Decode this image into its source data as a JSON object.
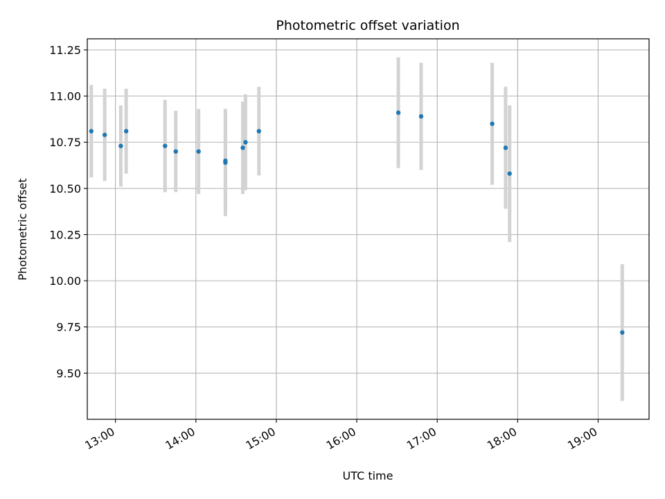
{
  "chart_data": {
    "type": "scatter",
    "title": "Photometric offset variation",
    "xlabel": "UTC time",
    "ylabel": "Photometric offset",
    "grid": true,
    "legend": "none",
    "x_axis": "time (hours UTC)",
    "xlim": [
      "12:39",
      "19:38"
    ],
    "ylim": [
      9.25,
      11.31
    ],
    "x_ticks": [
      "13:00",
      "14:00",
      "15:00",
      "16:00",
      "17:00",
      "18:00",
      "19:00"
    ],
    "y_ticks": [
      "9.50",
      "9.75",
      "10.00",
      "10.25",
      "10.50",
      "10.75",
      "11.00",
      "11.25"
    ],
    "colors": {
      "point": "#1f77b4",
      "errorbar": "#d3d3d3",
      "grid": "#b0b0b0",
      "axes": "#000000"
    },
    "series": [
      {
        "x": [
          "12:42",
          "12:52",
          "13:04",
          "13:08",
          "13:37",
          "13:45",
          "14:02",
          "14:22",
          "14:22",
          "14:35",
          "14:37",
          "14:47",
          "16:31",
          "16:48",
          "17:41",
          "17:51",
          "17:54",
          "19:18"
        ],
        "y": [
          10.81,
          10.79,
          10.73,
          10.81,
          10.73,
          10.7,
          10.7,
          10.64,
          10.65,
          10.72,
          10.75,
          10.81,
          10.91,
          10.89,
          10.85,
          10.72,
          10.58,
          9.72
        ],
        "yerr": [
          0.25,
          0.25,
          0.22,
          0.23,
          0.25,
          0.22,
          0.23,
          0.29,
          0.28,
          0.25,
          0.26,
          0.24,
          0.3,
          0.29,
          0.33,
          0.33,
          0.37,
          0.37
        ]
      }
    ]
  }
}
